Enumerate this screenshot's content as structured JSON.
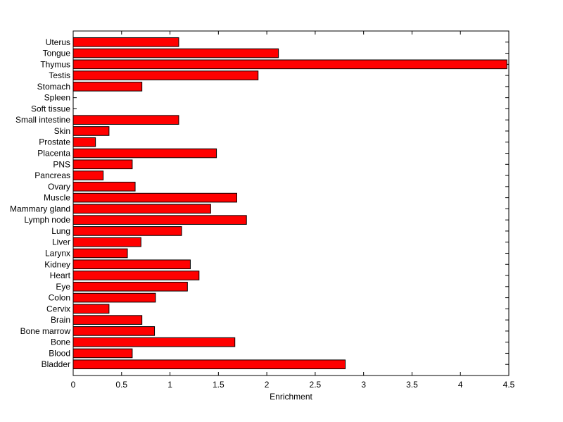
{
  "chart_data": {
    "type": "bar",
    "orientation": "horizontal",
    "categories": [
      "Bladder",
      "Blood",
      "Bone",
      "Bone marrow",
      "Brain",
      "Cervix",
      "Colon",
      "Eye",
      "Heart",
      "Kidney",
      "Larynx",
      "Liver",
      "Lung",
      "Lymph node",
      "Mammary gland",
      "Muscle",
      "Ovary",
      "Pancreas",
      "PNS",
      "Placenta",
      "Prostate",
      "Skin",
      "Small intestine",
      "Soft tissue",
      "Spleen",
      "Stomach",
      "Testis",
      "Thymus",
      "Tongue",
      "Uterus"
    ],
    "values": [
      2.81,
      0.61,
      1.67,
      0.84,
      0.71,
      0.37,
      0.85,
      1.18,
      1.3,
      1.21,
      0.56,
      0.7,
      1.12,
      1.79,
      1.42,
      1.69,
      0.64,
      0.31,
      0.61,
      1.48,
      0.23,
      0.37,
      1.09,
      0.0,
      0.0,
      0.71,
      1.91,
      4.48,
      2.12,
      1.09
    ],
    "xlabel": "Enrichment",
    "ylabel": "",
    "title": "",
    "xlim": [
      0,
      4.5
    ],
    "xticks": [
      "0",
      "0.5",
      "1",
      "1.5",
      "2",
      "2.5",
      "3",
      "3.5",
      "4",
      "4.5"
    ],
    "bar_color": "#ff0000",
    "grid": false
  }
}
